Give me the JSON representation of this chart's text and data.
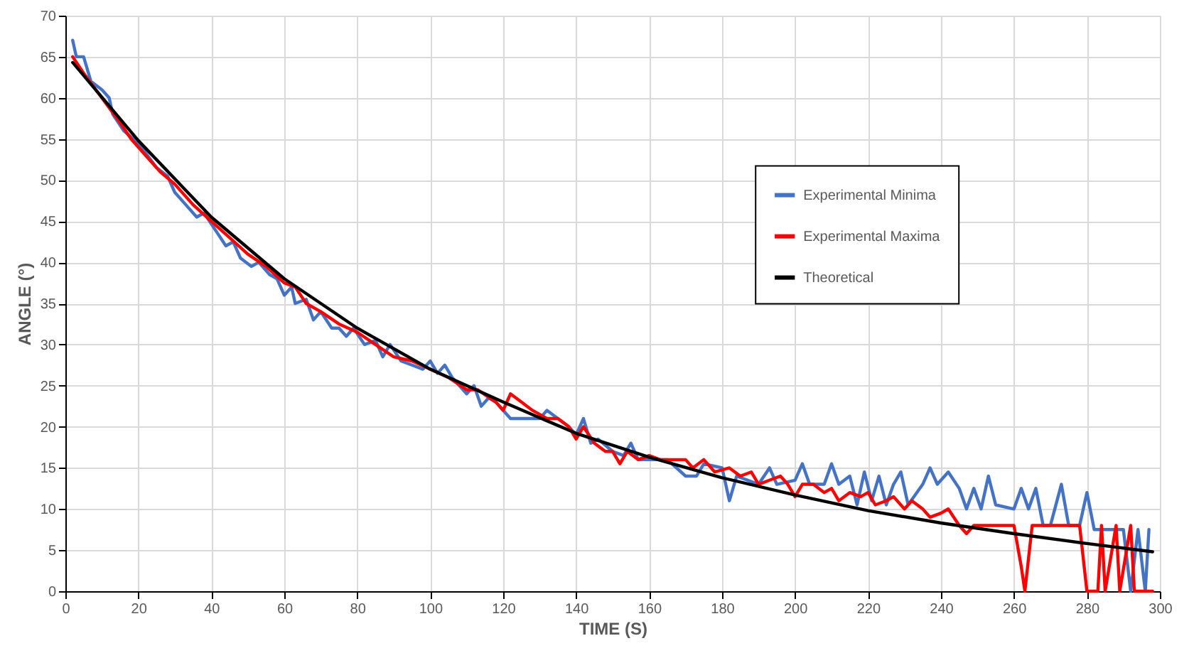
{
  "chart_data": {
    "type": "line",
    "xlabel": "TIME (S)",
    "ylabel": "ANGLE (°)",
    "xlim": [
      0,
      300
    ],
    "ylim": [
      0,
      70
    ],
    "xticks": [
      0,
      20,
      40,
      60,
      80,
      100,
      120,
      140,
      160,
      180,
      200,
      220,
      240,
      260,
      280,
      300
    ],
    "yticks": [
      0,
      5,
      10,
      15,
      20,
      25,
      30,
      35,
      40,
      45,
      50,
      55,
      60,
      65,
      70
    ],
    "grid": true,
    "legend": "right",
    "marker": "none",
    "line_style": "solid",
    "series": [
      {
        "name": "Experimental Minima",
        "color": "#4472c4",
        "x": [
          2,
          3,
          5,
          7,
          10,
          12,
          13,
          16,
          20,
          25,
          28,
          30,
          33,
          36,
          38,
          41,
          44,
          46,
          48,
          51,
          53,
          56,
          58,
          60,
          62,
          63,
          66,
          68,
          70,
          73,
          75,
          77,
          79,
          82,
          85,
          87,
          89,
          92,
          95,
          98,
          100,
          102,
          104,
          106,
          108,
          110,
          112,
          114,
          116,
          118,
          120,
          122,
          124,
          130,
          132,
          135,
          138,
          140,
          142,
          144,
          146,
          150,
          153,
          155,
          157,
          160,
          165,
          170,
          173,
          175,
          180,
          182,
          184,
          190,
          193,
          195,
          200,
          202,
          204,
          208,
          210,
          212,
          215,
          217,
          219,
          221,
          223,
          225,
          227,
          229,
          231,
          235,
          237,
          239,
          242,
          245,
          247,
          249,
          251,
          253,
          255,
          260,
          262,
          264,
          266,
          268,
          270,
          273,
          275,
          278,
          280,
          282,
          290,
          292,
          294,
          296,
          297
        ],
        "values": [
          67,
          65,
          65,
          62,
          61,
          60,
          58,
          56,
          54.5,
          51.5,
          50.5,
          48.5,
          47,
          45.5,
          46,
          44,
          42,
          42.5,
          40.5,
          39.5,
          40,
          38.5,
          38,
          36,
          37,
          35,
          35.5,
          33,
          34,
          32,
          32,
          31,
          32,
          30,
          30.5,
          28.5,
          30,
          28,
          27.5,
          27,
          28,
          26.5,
          27.5,
          26,
          25,
          24,
          25,
          22.5,
          23.5,
          23,
          22,
          21,
          21,
          21,
          22,
          21,
          20,
          19,
          21,
          18,
          18.5,
          17,
          16.5,
          18,
          16,
          16,
          16,
          14,
          14,
          15.5,
          15,
          11,
          14,
          13,
          15,
          13,
          13.5,
          15.5,
          13,
          13,
          15.5,
          13,
          14,
          10.5,
          14.5,
          11,
          14,
          10.5,
          13,
          14.5,
          10.5,
          13,
          15,
          13,
          14.5,
          12.5,
          10,
          12.5,
          10,
          14,
          10.5,
          10,
          12.5,
          10,
          12.5,
          8,
          8,
          13,
          8,
          8,
          12,
          7.5,
          7.5,
          0,
          7.5,
          0,
          7.5
        ]
      },
      {
        "name": "Experimental Maxima",
        "color": "#ff0000",
        "x": [
          2,
          5,
          10,
          15,
          18,
          22,
          26,
          30,
          35,
          40,
          45,
          50,
          55,
          60,
          63,
          66,
          70,
          75,
          80,
          85,
          90,
          95,
          100,
          105,
          110,
          113,
          118,
          120,
          122,
          125,
          128,
          132,
          135,
          138,
          140,
          142,
          145,
          148,
          150,
          152,
          154,
          157,
          160,
          163,
          167,
          170,
          172,
          175,
          178,
          182,
          185,
          188,
          190,
          193,
          196,
          198,
          200,
          202,
          205,
          208,
          210,
          212,
          215,
          218,
          220,
          222,
          225,
          227,
          230,
          232,
          235,
          237,
          240,
          242,
          245,
          247,
          249,
          252,
          256,
          260,
          262,
          263,
          265,
          268,
          272,
          276,
          278,
          280,
          283,
          284,
          285,
          288,
          289,
          292,
          293,
          298
        ],
        "values": [
          65,
          63,
          60,
          57,
          55,
          53,
          51,
          49.5,
          47,
          45,
          43,
          41,
          39.5,
          37.5,
          37,
          35,
          34,
          32.5,
          31.5,
          30,
          28.5,
          28,
          27,
          26,
          24.5,
          24.5,
          23,
          22,
          24,
          23,
          22,
          21,
          21,
          20,
          18.5,
          20,
          18,
          17,
          17,
          15.5,
          17,
          16,
          16.5,
          16,
          16,
          16,
          15,
          16,
          14.5,
          15,
          14,
          14.5,
          13,
          13.5,
          14,
          13,
          11.5,
          13,
          13,
          12,
          12.5,
          11,
          12,
          11.5,
          12,
          10.5,
          11,
          11.5,
          10,
          11,
          10,
          9,
          9.5,
          10,
          8,
          7,
          8,
          8,
          8,
          8,
          3,
          0,
          8,
          8,
          8,
          8,
          8,
          0,
          0,
          8,
          0,
          8,
          0,
          8,
          0,
          0
        ]
      },
      {
        "name": "Theoretical",
        "color": "#000000",
        "x": [
          2,
          20,
          40,
          60,
          80,
          100,
          120,
          140,
          160,
          180,
          200,
          220,
          240,
          260,
          280,
          298
        ],
        "values": [
          64.3,
          54.8,
          45.5,
          38,
          32,
          27,
          23,
          19.2,
          16.3,
          13.8,
          11.7,
          9.8,
          8.3,
          7,
          5.8,
          4.8
        ]
      }
    ]
  }
}
